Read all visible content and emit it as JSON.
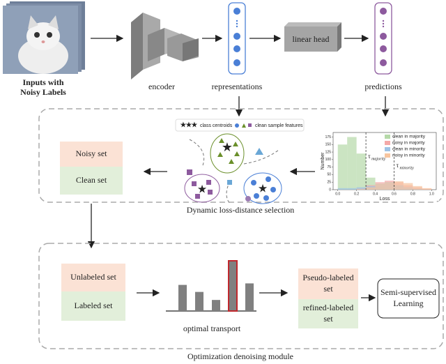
{
  "inputs": {
    "label_line1": "Inputs with",
    "label_line2": "Noisy Labels"
  },
  "pipeline": {
    "encoder": "encoder",
    "representations": "representations",
    "linear_head": "linear head",
    "predictions": "predictions"
  },
  "selection": {
    "title": "Dynamic loss-distance selection",
    "legend_centroids": "class centroids",
    "legend_features": "clean sample features",
    "noisy_set": "Noisy set",
    "clean_set": "Clean set"
  },
  "histogram": {
    "ylabel": "Number",
    "xlabel": "Loss",
    "xlim": [
      -0.05,
      1.05
    ],
    "ylim": [
      0,
      190
    ],
    "xticks": [
      {
        "value": 0,
        "label": "0.0"
      },
      {
        "value": 0.2,
        "label": "0.2"
      },
      {
        "value": 0.4,
        "label": "0.4"
      },
      {
        "value": 0.6,
        "label": "0.6"
      },
      {
        "value": 0.8,
        "label": "0.8"
      },
      {
        "value": 1,
        "label": "1.0"
      }
    ],
    "yticks": [
      0,
      25,
      50,
      75,
      100,
      125,
      150,
      175
    ],
    "bins": [
      0,
      0.1,
      0.2,
      0.3,
      0.4,
      0.5,
      0.6,
      0.7,
      0.8,
      0.9,
      1.0
    ],
    "series": [
      {
        "name": "clean in majority",
        "color": "#b5d9a8",
        "values": [
          150,
          175,
          120,
          40,
          10,
          3,
          0,
          0,
          0,
          0
        ]
      },
      {
        "name": "noisy in majority",
        "color": "#f4a9a8",
        "values": [
          0,
          0,
          5,
          15,
          25,
          30,
          25,
          15,
          8,
          3
        ]
      },
      {
        "name": "clean in minority",
        "color": "#9dc3e6",
        "values": [
          5,
          5,
          8,
          12,
          20,
          25,
          15,
          8,
          3,
          0
        ]
      },
      {
        "name": "noisy in minority",
        "color": "#f7c59f",
        "values": [
          0,
          0,
          2,
          8,
          20,
          25,
          28,
          22,
          12,
          5
        ]
      }
    ],
    "thresholds": [
      {
        "value": 0.3,
        "symbol": "τ",
        "sub": "majority"
      },
      {
        "value": 0.6,
        "symbol": "τ",
        "sub": "minority"
      }
    ]
  },
  "optimization": {
    "title": "Optimization denoising module",
    "unlabeled_set": "Unlabeled set",
    "labeled_set": "Labeled set",
    "transport": "optimal transport",
    "bars": [
      52,
      38,
      22,
      100,
      55
    ],
    "highlight": 3,
    "pseudo_line1": "Pseudo-labeled",
    "pseudo_line2": "set",
    "refined_line1": "refined-labeled",
    "refined_line2": "set",
    "ssl_line1": "Semi-supervised",
    "ssl_line2": "Learning"
  }
}
